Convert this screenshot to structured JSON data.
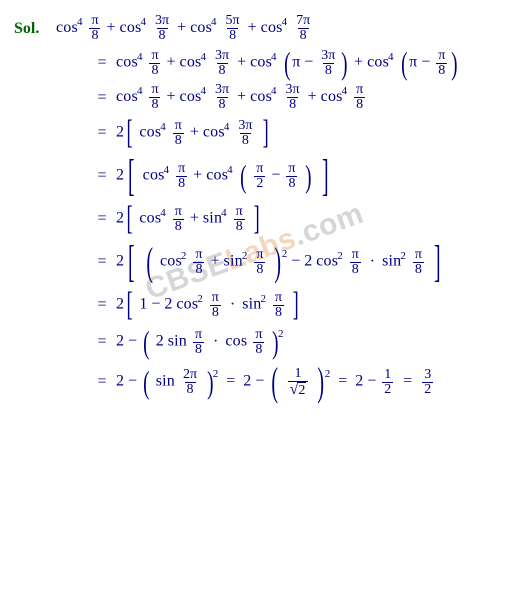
{
  "watermark": {
    "part1": "CBSE",
    "part2": "Labs",
    "part3": ".com"
  },
  "colors": {
    "text": "#000080",
    "label": "#006400",
    "wm_gray": "#d6d6d6",
    "wm_orange": "#f3d7bd",
    "bg": "#ffffff"
  },
  "label": "Sol.",
  "pi": "π",
  "lines": [
    {
      "eq": "",
      "expr_key": "L0"
    },
    {
      "eq": "=",
      "expr_key": "L1"
    },
    {
      "eq": "=",
      "expr_key": "L2"
    },
    {
      "eq": "=",
      "expr_key": "L3"
    },
    {
      "eq": "=",
      "expr_key": "L4"
    },
    {
      "eq": "=",
      "expr_key": "L5"
    },
    {
      "eq": "=",
      "expr_key": "L6"
    },
    {
      "eq": "=",
      "expr_key": "L7"
    },
    {
      "eq": "=",
      "expr_key": "L8"
    },
    {
      "eq": "=",
      "expr_key": "L9"
    }
  ],
  "T": {
    "cos": "cos",
    "sin": "sin",
    "p4": "4",
    "p2": "2",
    "pi8": {
      "n": "π",
      "d": "8"
    },
    "3pi8": {
      "n": "3π",
      "d": "8"
    },
    "5pi8": {
      "n": "5π",
      "d": "8"
    },
    "7pi8": {
      "n": "7π",
      "d": "8"
    },
    "pi2": {
      "n": "π",
      "d": "2"
    },
    "2pi8": {
      "n": "2π",
      "d": "8"
    },
    "two": "2",
    "one": "1",
    "half": {
      "n": "1",
      "d": "2"
    },
    "three_half": {
      "n": "3",
      "d": "2"
    },
    "inv_sqrt2": {
      "n": "1",
      "d_rad": "2"
    },
    "minus": "−",
    "plus": "+",
    "mid_dot": "·"
  }
}
